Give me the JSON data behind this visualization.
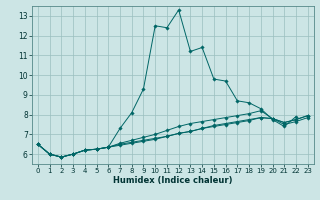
{
  "xlabel": "Humidex (Indice chaleur)",
  "bg_color": "#cce5e5",
  "grid_color": "#9bbfbf",
  "line_color": "#006666",
  "xlim": [
    -0.5,
    23.5
  ],
  "ylim": [
    5.5,
    13.5
  ],
  "yticks": [
    6,
    7,
    8,
    9,
    10,
    11,
    12,
    13
  ],
  "xticks": [
    0,
    1,
    2,
    3,
    4,
    5,
    6,
    7,
    8,
    9,
    10,
    11,
    12,
    13,
    14,
    15,
    16,
    17,
    18,
    19,
    20,
    21,
    22,
    23
  ],
  "series": [
    {
      "x": [
        0,
        1,
        2,
        3,
        4,
        5,
        6,
        7,
        8,
        9,
        10,
        11,
        12,
        13,
        14,
        15,
        16,
        17,
        18,
        19,
        20,
        21,
        22
      ],
      "y": [
        6.5,
        6.0,
        5.85,
        6.0,
        6.2,
        6.25,
        6.35,
        7.3,
        8.1,
        9.3,
        12.5,
        12.4,
        13.3,
        11.2,
        11.4,
        9.8,
        9.7,
        8.7,
        8.6,
        8.3,
        7.75,
        7.4,
        7.9
      ]
    },
    {
      "x": [
        0,
        1,
        2,
        3,
        4,
        5,
        6,
        7,
        8,
        9,
        10,
        11,
        12,
        13,
        14,
        15,
        16,
        17,
        18,
        19,
        20,
        21,
        22,
        23
      ],
      "y": [
        6.5,
        6.0,
        5.85,
        6.0,
        6.2,
        6.25,
        6.35,
        6.5,
        6.6,
        6.7,
        6.8,
        6.9,
        7.05,
        7.15,
        7.3,
        7.45,
        7.55,
        7.65,
        7.75,
        7.85,
        7.8,
        7.6,
        7.75,
        7.95
      ]
    },
    {
      "x": [
        0,
        1,
        2,
        3,
        4,
        5,
        6,
        7,
        8,
        9,
        10,
        11,
        12,
        13,
        14,
        15,
        16,
        17,
        18,
        19,
        20,
        21,
        22,
        23
      ],
      "y": [
        6.5,
        6.0,
        5.85,
        6.0,
        6.2,
        6.25,
        6.35,
        6.55,
        6.7,
        6.85,
        7.0,
        7.2,
        7.4,
        7.55,
        7.65,
        7.75,
        7.85,
        7.95,
        8.05,
        8.2,
        7.8,
        7.6,
        7.75,
        7.95
      ]
    },
    {
      "x": [
        0,
        1,
        2,
        3,
        4,
        5,
        6,
        7,
        8,
        9,
        10,
        11,
        12,
        13,
        14,
        15,
        16,
        17,
        18,
        19,
        20,
        21,
        22,
        23
      ],
      "y": [
        6.5,
        6.0,
        5.85,
        6.0,
        6.2,
        6.25,
        6.35,
        6.45,
        6.55,
        6.65,
        6.75,
        6.9,
        7.05,
        7.15,
        7.3,
        7.4,
        7.5,
        7.6,
        7.7,
        7.85,
        7.8,
        7.5,
        7.65,
        7.85
      ]
    }
  ]
}
